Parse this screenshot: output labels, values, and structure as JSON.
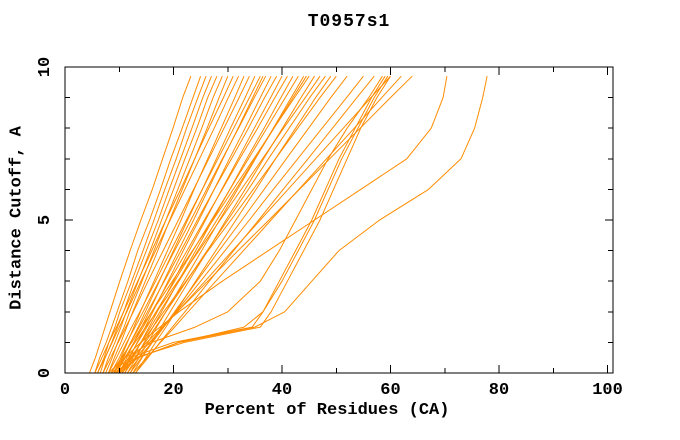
{
  "title": "T0957s1",
  "colors": {
    "curve": "#FF8C00",
    "axis": "#000000",
    "background": "#FFFFFF",
    "text": "#000000"
  },
  "chart_data": {
    "type": "line",
    "title": "T0957s1",
    "xlabel": "Percent of Residues (CA)",
    "ylabel": "Distance Cutoff, A",
    "xlim": [
      0,
      101
    ],
    "ylim": [
      0,
      10
    ],
    "x_major_ticks": [
      0,
      20,
      40,
      60,
      80,
      100
    ],
    "x_minor_step": 10,
    "y_major_ticks": [
      0,
      5,
      10
    ],
    "y_minor_step": 1,
    "grid": false,
    "legend_position": "none",
    "series_color": "#FF8C00",
    "description": "Each curve is one model: percent of CA residues (x) superimposable under a distance cutoff in Angstroms (y). All curves share y_values; series_x lists x per curve.",
    "y_values": [
      0,
      0.5,
      1,
      1.5,
      2,
      3,
      4,
      5,
      6,
      7,
      8,
      9,
      9.7
    ],
    "series_x": [
      [
        4.5,
        5.6,
        6.5,
        7.4,
        8.3,
        10.1,
        12.0,
        14.0,
        16.1,
        18.0,
        19.9,
        21.7,
        23.2
      ],
      [
        5.5,
        6.4,
        7.6,
        8.6,
        9.6,
        11.6,
        13.4,
        15.6,
        17.6,
        19.5,
        21.6,
        23.6,
        25.0
      ],
      [
        6.0,
        7.2,
        8.1,
        9.2,
        10.1,
        12.3,
        14.4,
        16.4,
        18.4,
        20.5,
        22.4,
        24.5,
        26.0
      ],
      [
        6.5,
        7.4,
        8.6,
        9.7,
        10.8,
        12.8,
        15.0,
        17.2,
        19.2,
        21.3,
        23.4,
        25.4,
        27.0
      ],
      [
        7.0,
        8.0,
        9.2,
        10.3,
        11.3,
        13.5,
        15.7,
        17.8,
        20.0,
        22.1,
        24.3,
        26.3,
        28.0
      ],
      [
        7.5,
        8.7,
        9.7,
        10.9,
        11.9,
        14.2,
        16.4,
        18.6,
        20.8,
        23.0,
        25.2,
        27.3,
        29.0
      ],
      [
        8.0,
        9.1,
        10.3,
        11.4,
        12.5,
        14.8,
        17.1,
        19.3,
        21.6,
        23.9,
        26.2,
        28.4,
        30.0
      ],
      [
        5.5,
        6.8,
        8.1,
        9.5,
        10.8,
        13.4,
        16.0,
        18.6,
        21.3,
        23.9,
        26.5,
        29.2,
        31.0
      ],
      [
        6.0,
        7.4,
        8.7,
        10.0,
        11.4,
        14.0,
        16.7,
        19.4,
        22.1,
        24.8,
        27.5,
        30.1,
        32.0
      ],
      [
        9.0,
        10.3,
        11.5,
        12.7,
        13.9,
        16.4,
        18.9,
        21.4,
        23.8,
        26.3,
        28.8,
        31.3,
        33.0
      ],
      [
        7.0,
        8.4,
        9.8,
        11.2,
        12.6,
        15.3,
        18.1,
        20.9,
        23.7,
        26.5,
        29.3,
        32.1,
        34.0
      ],
      [
        9.5,
        10.8,
        12.1,
        13.5,
        14.8,
        17.4,
        20.0,
        22.6,
        25.3,
        27.9,
        30.5,
        33.2,
        35.0
      ],
      [
        8.0,
        9.5,
        10.9,
        12.3,
        13.8,
        16.7,
        19.5,
        22.4,
        25.3,
        28.2,
        31.1,
        34.0,
        36.0
      ],
      [
        10.0,
        11.4,
        12.7,
        14.1,
        15.5,
        18.2,
        20.9,
        23.7,
        26.4,
        29.1,
        31.9,
        34.6,
        36.5
      ],
      [
        8.5,
        10.0,
        11.4,
        12.9,
        14.4,
        17.3,
        20.2,
        23.2,
        26.1,
        29.0,
        32.0,
        34.9,
        37.0
      ],
      [
        10.5,
        11.9,
        13.3,
        14.8,
        16.2,
        19.0,
        21.8,
        24.7,
        27.5,
        30.3,
        33.2,
        36.0,
        38.0
      ],
      [
        9.0,
        10.6,
        12.1,
        13.7,
        15.2,
        18.3,
        21.4,
        24.4,
        27.5,
        30.7,
        33.8,
        36.8,
        39.0
      ],
      [
        11.0,
        12.5,
        14.0,
        15.5,
        17.0,
        20.0,
        22.9,
        25.9,
        28.9,
        31.9,
        34.9,
        37.9,
        40.0
      ],
      [
        9.5,
        11.1,
        12.7,
        14.4,
        16.0,
        19.2,
        22.5,
        25.7,
        29.0,
        32.2,
        35.5,
        38.7,
        41.0
      ],
      [
        11.5,
        13.1,
        14.6,
        16.2,
        17.8,
        20.9,
        24.1,
        27.2,
        30.4,
        33.5,
        36.7,
        39.8,
        42.0
      ],
      [
        10.0,
        11.7,
        13.4,
        15.1,
        16.8,
        20.2,
        23.6,
        27.0,
        30.4,
        33.8,
        37.2,
        40.6,
        43.0
      ],
      [
        12.0,
        13.6,
        15.3,
        16.9,
        18.6,
        21.9,
        25.2,
        28.5,
        31.8,
        35.1,
        38.4,
        41.7,
        44.0
      ],
      [
        10.5,
        12.3,
        14.0,
        15.8,
        17.5,
        21.0,
        24.5,
        28.0,
        31.5,
        35.0,
        38.5,
        42.0,
        44.5
      ],
      [
        8.5,
        10.4,
        12.3,
        14.1,
        16.0,
        19.8,
        23.5,
        27.3,
        31.0,
        34.8,
        38.5,
        42.3,
        45.0
      ],
      [
        12.5,
        14.2,
        15.9,
        17.7,
        19.4,
        22.8,
        26.3,
        29.7,
        33.2,
        36.6,
        40.1,
        43.5,
        46.0
      ],
      [
        9.0,
        11.0,
        12.9,
        14.9,
        16.9,
        20.8,
        24.7,
        28.6,
        32.5,
        36.4,
        40.3,
        44.3,
        47.0
      ],
      [
        11.0,
        12.9,
        14.8,
        16.7,
        18.6,
        22.4,
        26.2,
        30.0,
        33.8,
        37.5,
        41.3,
        45.1,
        48.0
      ],
      [
        13.0,
        14.9,
        16.7,
        18.6,
        20.4,
        24.1,
        27.8,
        31.5,
        35.2,
        38.8,
        42.5,
        46.2,
        49.0
      ],
      [
        10.0,
        12.1,
        14.1,
        16.2,
        18.2,
        22.3,
        26.4,
        30.6,
        34.7,
        38.8,
        42.9,
        47.0,
        50.0
      ],
      [
        12.0,
        14.1,
        16.1,
        18.2,
        20.2,
        24.3,
        28.4,
        32.6,
        36.7,
        40.8,
        44.9,
        49.0,
        52.0
      ],
      [
        11.5,
        13.7,
        16.0,
        18.2,
        20.5,
        25.0,
        29.5,
        34.0,
        38.4,
        42.9,
        47.4,
        51.9,
        55.0
      ],
      [
        13.0,
        15.3,
        17.5,
        19.8,
        22.1,
        26.6,
        31.1,
        35.7,
        40.2,
        44.8,
        49.3,
        53.8,
        57.0
      ],
      [
        10.5,
        13.0,
        15.6,
        18.1,
        20.7,
        25.8,
        30.9,
        36.0,
        41.1,
        46.2,
        51.3,
        56.4,
        60.0
      ],
      [
        12.5,
        15.1,
        17.6,
        20.2,
        22.7,
        27.8,
        32.9,
        38.0,
        43.1,
        48.2,
        53.3,
        58.4,
        62.0
      ],
      [
        9.5,
        12.3,
        15.1,
        17.9,
        20.7,
        26.3,
        31.9,
        37.6,
        43.2,
        48.8,
        54.4,
        60.0,
        64.0
      ],
      [
        9.0,
        13.0,
        22.0,
        36.0,
        38.0,
        41.0,
        44.0,
        47.0,
        49.5,
        52.0,
        54.5,
        57.5,
        60.0
      ],
      [
        8.5,
        12.0,
        20.0,
        34.5,
        36.5,
        39.5,
        42.5,
        45.5,
        48.0,
        50.5,
        53.5,
        56.5,
        59.0
      ],
      [
        8.0,
        11.0,
        16.0,
        24.0,
        30.0,
        36.0,
        39.5,
        42.5,
        45.5,
        48.5,
        52.0,
        56.0,
        58.5
      ],
      [
        9.5,
        13.5,
        21.0,
        33.0,
        36.5,
        40.0,
        43.0,
        46.0,
        48.5,
        51.0,
        54.0,
        57.0,
        59.5
      ],
      [
        9.0,
        11.0,
        14.0,
        17.5,
        21.0,
        29.0,
        37.5,
        46.0,
        54.5,
        63.0,
        67.5,
        69.7,
        70.4
      ],
      [
        10.0,
        13.5,
        21.0,
        35.0,
        40.5,
        45.5,
        50.5,
        58.0,
        67.0,
        73.0,
        75.5,
        77.0,
        77.8
      ]
    ]
  }
}
